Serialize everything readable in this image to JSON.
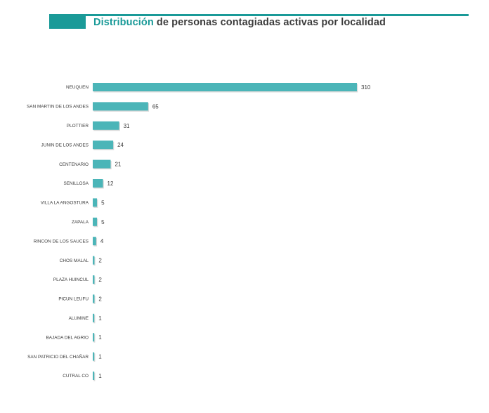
{
  "title": {
    "accent": "Distribución",
    "rest": " de personas contagiadas activas por localidad"
  },
  "colors": {
    "accent": "#1a9a98",
    "bar": "#4bb5b8",
    "text": "#3c3c3c"
  },
  "chart_data": {
    "type": "bar",
    "orientation": "horizontal",
    "categories": [
      "NEUQUEN",
      "SAN MARTIN DE LOS ANDES",
      "PLOTTIER",
      "JUNIN DE LOS ANDES",
      "CENTENARIO",
      "SENILLOSA",
      "VILLA LA ANGOSTURA",
      "ZAPALA",
      "RINCON DE LOS SAUCES",
      "CHOS MALAL",
      "PLAZA HUINCUL",
      "PICUN LEUFU",
      "ALUMINE",
      "BAJADA DEL AGRIO",
      "SAN PATRICIO DEL CHAÑAR",
      "CUTRAL CO"
    ],
    "values": [
      310,
      65,
      31,
      24,
      21,
      12,
      5,
      5,
      4,
      2,
      2,
      2,
      1,
      1,
      1,
      1
    ],
    "title": "Distribución de personas contagiadas activas por localidad",
    "xlim": [
      0,
      310
    ],
    "grid": false,
    "data_labels": true
  }
}
